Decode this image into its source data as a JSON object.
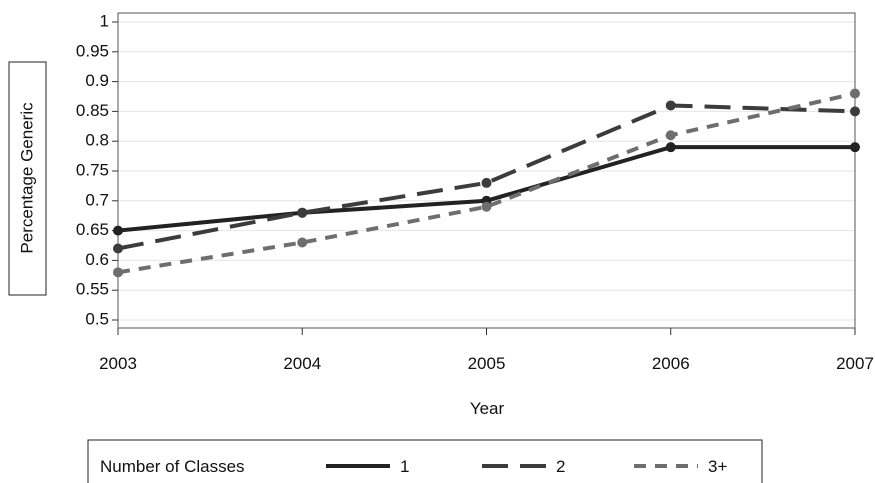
{
  "chart_data": {
    "type": "line",
    "x": [
      "2003",
      "2004",
      "2005",
      "2006",
      "2007"
    ],
    "series": [
      {
        "name": "1",
        "values": [
          0.65,
          0.68,
          0.7,
          0.79,
          0.79
        ],
        "color": "#222222",
        "dash": "solid"
      },
      {
        "name": "2",
        "values": [
          0.62,
          0.68,
          0.73,
          0.86,
          0.85
        ],
        "color": "#3c3c3c",
        "dash": "long-dash"
      },
      {
        "name": "3+",
        "values": [
          0.58,
          0.63,
          0.69,
          0.81,
          0.88
        ],
        "color": "#6e6e6e",
        "dash": "short-dash"
      }
    ],
    "xlabel": "Year",
    "ylabel": "Percentage Generic",
    "ylim": [
      0.5,
      1.0
    ],
    "yticks": [
      "0.5",
      "0.55",
      "0.6",
      "0.65",
      "0.7",
      "0.75",
      "0.8",
      "0.85",
      "0.9",
      "0.95",
      "1"
    ],
    "grid": true,
    "legend": {
      "title": "Number of Classes",
      "placement": "bottom"
    }
  }
}
